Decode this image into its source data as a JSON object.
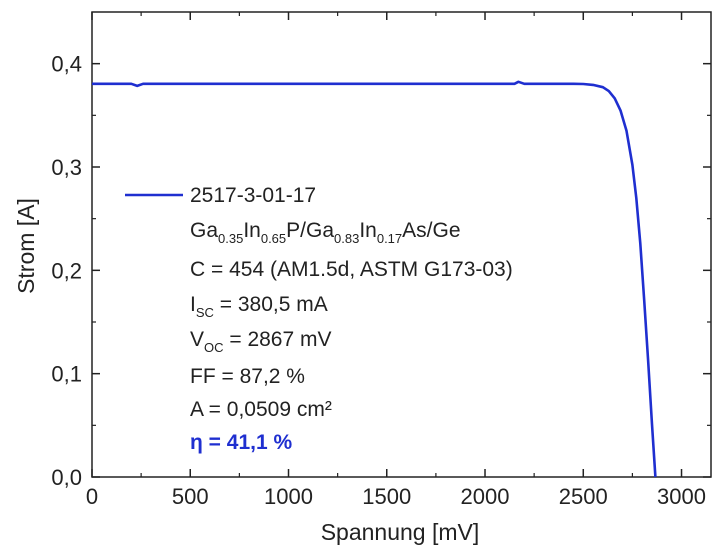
{
  "chart_data": {
    "type": "line",
    "title": "",
    "xlabel": "Spannung [mV]",
    "ylabel": "Strom [A]",
    "xlim": [
      0,
      3150
    ],
    "ylim": [
      0,
      0.45
    ],
    "x_ticks": [
      0,
      500,
      1000,
      1500,
      2000,
      2500,
      3000
    ],
    "y_ticks": [
      0.0,
      0.1,
      0.2,
      0.3,
      0.4
    ],
    "x_tick_labels": [
      "0",
      "500",
      "1000",
      "1500",
      "2000",
      "2500",
      "3000"
    ],
    "y_tick_labels": [
      "0,0",
      "0,1",
      "0,2",
      "0,3",
      "0,4"
    ],
    "grid": false,
    "legend_position": "center-left",
    "series": [
      {
        "name": "2517-3-01-17",
        "color": "#1f2fd0",
        "x": [
          0,
          100,
          200,
          230,
          260,
          400,
          600,
          800,
          1000,
          1200,
          1400,
          1600,
          1800,
          2000,
          2150,
          2170,
          2200,
          2300,
          2400,
          2450,
          2500,
          2550,
          2600,
          2630,
          2660,
          2690,
          2720,
          2750,
          2770,
          2790,
          2810,
          2830,
          2850,
          2867
        ],
        "values": [
          0.3805,
          0.3805,
          0.3805,
          0.3785,
          0.3805,
          0.3805,
          0.3805,
          0.3805,
          0.3805,
          0.3805,
          0.3805,
          0.3805,
          0.3805,
          0.3805,
          0.3805,
          0.3825,
          0.3805,
          0.3805,
          0.3805,
          0.3805,
          0.3803,
          0.3795,
          0.3772,
          0.3735,
          0.3665,
          0.3545,
          0.335,
          0.302,
          0.27,
          0.226,
          0.171,
          0.113,
          0.051,
          0.0
        ]
      }
    ],
    "legend_text": {
      "sample_id": "2517-3-01-17",
      "composition": {
        "t1": "Ga",
        "s1": "0.35",
        "t2": "In",
        "s2": "0.65",
        "t3": "P/Ga",
        "s3": "0.83",
        "t4": "In",
        "s4": "0.17",
        "t5": "As/Ge"
      },
      "concentration": "C = 454 (AM1.5d, ASTM G173-03)",
      "isc": {
        "main": "I",
        "sub": "SC",
        "rest": " = 380,5 mA"
      },
      "voc": {
        "main": "V",
        "sub": "OC",
        "rest": " = 2867 mV"
      },
      "ff": "FF = 87,2 %",
      "area": "A = 0,0509 cm²",
      "efficiency": "η = 41,1 %"
    }
  }
}
